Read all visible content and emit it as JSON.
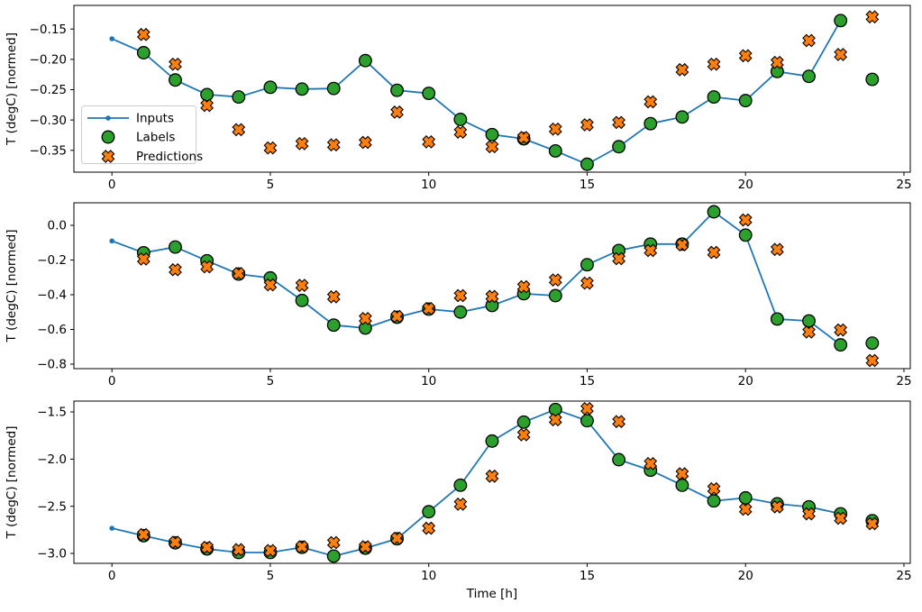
{
  "figure": {
    "background": "#ffffff",
    "xlabel": "Time [h]",
    "ylabel": "T (degC) [normed]",
    "xticks": [
      0,
      5,
      10,
      15,
      20,
      25
    ],
    "x_tick_labels": [
      "0",
      "5",
      "10",
      "15",
      "20",
      "25"
    ],
    "legend": {
      "items": [
        "Inputs",
        "Labels",
        "Predictions"
      ],
      "position": "upper-left-of-first-subplot"
    },
    "colors": {
      "inputs": "#1f77b4",
      "labels": "#2ca02c",
      "predictions": "#ff7f0e",
      "marker_edge": "#000000",
      "axis": "#000000",
      "legend_border": "#cccccc",
      "legend_bg": "#ffffff"
    }
  },
  "chart_data": [
    {
      "type": "line",
      "subplot": 1,
      "ylabel": "T (degC) [normed]",
      "xlim": [
        -1.2,
        25.2
      ],
      "ylim": [
        -0.386,
        -0.111
      ],
      "yticks": [
        -0.15,
        -0.2,
        -0.25,
        -0.3,
        -0.35
      ],
      "y_tick_labels": [
        "−0.15",
        "−0.20",
        "−0.25",
        "−0.30",
        "−0.35"
      ],
      "grid": false,
      "legend_visible": true,
      "series": [
        {
          "name": "Inputs",
          "kind": "line-dot",
          "x": [
            0,
            1,
            2,
            3,
            4,
            5,
            6,
            7,
            8,
            9,
            10,
            11,
            12,
            13,
            14,
            15,
            16,
            17,
            18,
            19,
            20,
            21,
            22,
            23
          ],
          "y": [
            -0.166,
            -0.189,
            -0.234,
            -0.258,
            -0.262,
            -0.246,
            -0.249,
            -0.248,
            -0.202,
            -0.251,
            -0.256,
            -0.299,
            -0.324,
            -0.331,
            -0.351,
            -0.373,
            -0.344,
            -0.306,
            -0.295,
            -0.262,
            -0.268,
            -0.22,
            -0.228,
            -0.136
          ]
        },
        {
          "name": "Labels",
          "kind": "scatter-circle",
          "x": [
            1,
            2,
            3,
            4,
            5,
            6,
            7,
            8,
            9,
            10,
            11,
            12,
            13,
            14,
            15,
            16,
            17,
            18,
            19,
            20,
            21,
            22,
            23,
            24
          ],
          "y": [
            -0.189,
            -0.234,
            -0.258,
            -0.262,
            -0.246,
            -0.249,
            -0.248,
            -0.202,
            -0.251,
            -0.256,
            -0.299,
            -0.324,
            -0.331,
            -0.351,
            -0.373,
            -0.344,
            -0.306,
            -0.295,
            -0.262,
            -0.268,
            -0.22,
            -0.228,
            -0.136,
            -0.233
          ]
        },
        {
          "name": "Predictions",
          "kind": "scatter-x",
          "x": [
            1,
            2,
            3,
            4,
            5,
            6,
            7,
            8,
            9,
            10,
            11,
            12,
            13,
            14,
            15,
            16,
            17,
            18,
            19,
            20,
            21,
            22,
            23,
            24
          ],
          "y": [
            -0.159,
            -0.208,
            -0.276,
            -0.316,
            -0.346,
            -0.339,
            -0.341,
            -0.337,
            -0.287,
            -0.336,
            -0.32,
            -0.344,
            -0.329,
            -0.315,
            -0.308,
            -0.304,
            -0.27,
            -0.217,
            -0.208,
            -0.194,
            -0.205,
            -0.169,
            -0.192,
            -0.13
          ]
        }
      ]
    },
    {
      "type": "line",
      "subplot": 2,
      "ylabel": "T (degC) [normed]",
      "xlim": [
        -1.2,
        25.2
      ],
      "ylim": [
        -0.826,
        0.13
      ],
      "yticks": [
        0.0,
        -0.2,
        -0.4,
        -0.6,
        -0.8
      ],
      "y_tick_labels": [
        "0.0",
        "−0.2",
        "−0.4",
        "−0.6",
        "−0.8"
      ],
      "grid": false,
      "legend_visible": false,
      "series": [
        {
          "name": "Inputs",
          "kind": "line-dot",
          "x": [
            0,
            1,
            2,
            3,
            4,
            5,
            6,
            7,
            8,
            9,
            10,
            11,
            12,
            13,
            14,
            15,
            16,
            17,
            18,
            19,
            20,
            21,
            22,
            23
          ],
          "y": [
            -0.09,
            -0.158,
            -0.125,
            -0.204,
            -0.281,
            -0.303,
            -0.433,
            -0.575,
            -0.592,
            -0.53,
            -0.483,
            -0.5,
            -0.462,
            -0.394,
            -0.405,
            -0.227,
            -0.145,
            -0.108,
            -0.108,
            0.078,
            -0.056,
            -0.54,
            -0.551,
            -0.689
          ]
        },
        {
          "name": "Labels",
          "kind": "scatter-circle",
          "x": [
            1,
            2,
            3,
            4,
            5,
            6,
            7,
            8,
            9,
            10,
            11,
            12,
            13,
            14,
            15,
            16,
            17,
            18,
            19,
            20,
            21,
            22,
            23,
            24
          ],
          "y": [
            -0.158,
            -0.125,
            -0.204,
            -0.281,
            -0.303,
            -0.433,
            -0.575,
            -0.592,
            -0.53,
            -0.483,
            -0.5,
            -0.462,
            -0.394,
            -0.405,
            -0.227,
            -0.145,
            -0.108,
            -0.108,
            0.078,
            -0.056,
            -0.54,
            -0.551,
            -0.689,
            -0.679
          ]
        },
        {
          "name": "Predictions",
          "kind": "scatter-x",
          "x": [
            1,
            2,
            3,
            4,
            5,
            6,
            7,
            8,
            9,
            10,
            11,
            12,
            13,
            14,
            15,
            16,
            17,
            18,
            19,
            20,
            21,
            22,
            23,
            24
          ],
          "y": [
            -0.194,
            -0.256,
            -0.239,
            -0.278,
            -0.343,
            -0.346,
            -0.412,
            -0.537,
            -0.525,
            -0.48,
            -0.405,
            -0.41,
            -0.354,
            -0.315,
            -0.333,
            -0.192,
            -0.145,
            -0.112,
            -0.156,
            0.031,
            -0.139,
            -0.615,
            -0.603,
            -0.779
          ]
        }
      ]
    },
    {
      "type": "line",
      "subplot": 3,
      "ylabel": "T (degC) [normed]",
      "xlabel": "Time [h]",
      "xlim": [
        -1.2,
        25.2
      ],
      "ylim": [
        -3.105,
        -1.385
      ],
      "yticks": [
        -1.5,
        -2.0,
        -2.5,
        -3.0
      ],
      "y_tick_labels": [
        "−1.5",
        "−2.0",
        "−2.5",
        "−3.0"
      ],
      "grid": false,
      "legend_visible": false,
      "series": [
        {
          "name": "Inputs",
          "kind": "line-dot",
          "x": [
            0,
            1,
            2,
            3,
            4,
            5,
            6,
            7,
            8,
            9,
            10,
            11,
            12,
            13,
            14,
            15,
            16,
            17,
            18,
            19,
            20,
            21,
            22,
            23
          ],
          "y": [
            -2.733,
            -2.812,
            -2.888,
            -2.952,
            -2.99,
            -2.99,
            -2.935,
            -3.028,
            -2.945,
            -2.845,
            -2.558,
            -2.277,
            -1.809,
            -1.608,
            -1.474,
            -1.593,
            -2.006,
            -2.118,
            -2.277,
            -2.443,
            -2.411,
            -2.474,
            -2.506,
            -2.58
          ]
        },
        {
          "name": "Labels",
          "kind": "scatter-circle",
          "x": [
            1,
            2,
            3,
            4,
            5,
            6,
            7,
            8,
            9,
            10,
            11,
            12,
            13,
            14,
            15,
            16,
            17,
            18,
            19,
            20,
            21,
            22,
            23,
            24
          ],
          "y": [
            -2.812,
            -2.888,
            -2.952,
            -2.99,
            -2.99,
            -2.935,
            -3.028,
            -2.945,
            -2.845,
            -2.558,
            -2.277,
            -1.809,
            -1.608,
            -1.474,
            -1.593,
            -2.006,
            -2.118,
            -2.277,
            -2.443,
            -2.411,
            -2.474,
            -2.506,
            -2.58,
            -2.653
          ]
        },
        {
          "name": "Predictions",
          "kind": "scatter-x",
          "x": [
            1,
            2,
            3,
            4,
            5,
            6,
            7,
            8,
            9,
            10,
            11,
            12,
            13,
            14,
            15,
            16,
            17,
            18,
            19,
            20,
            21,
            22,
            23,
            24
          ],
          "y": [
            -2.8,
            -2.882,
            -2.936,
            -2.96,
            -2.97,
            -2.93,
            -2.885,
            -2.93,
            -2.84,
            -2.733,
            -2.478,
            -2.181,
            -1.742,
            -1.583,
            -1.465,
            -1.602,
            -2.048,
            -2.156,
            -2.315,
            -2.532,
            -2.506,
            -2.58,
            -2.627,
            -2.685
          ]
        }
      ]
    }
  ]
}
